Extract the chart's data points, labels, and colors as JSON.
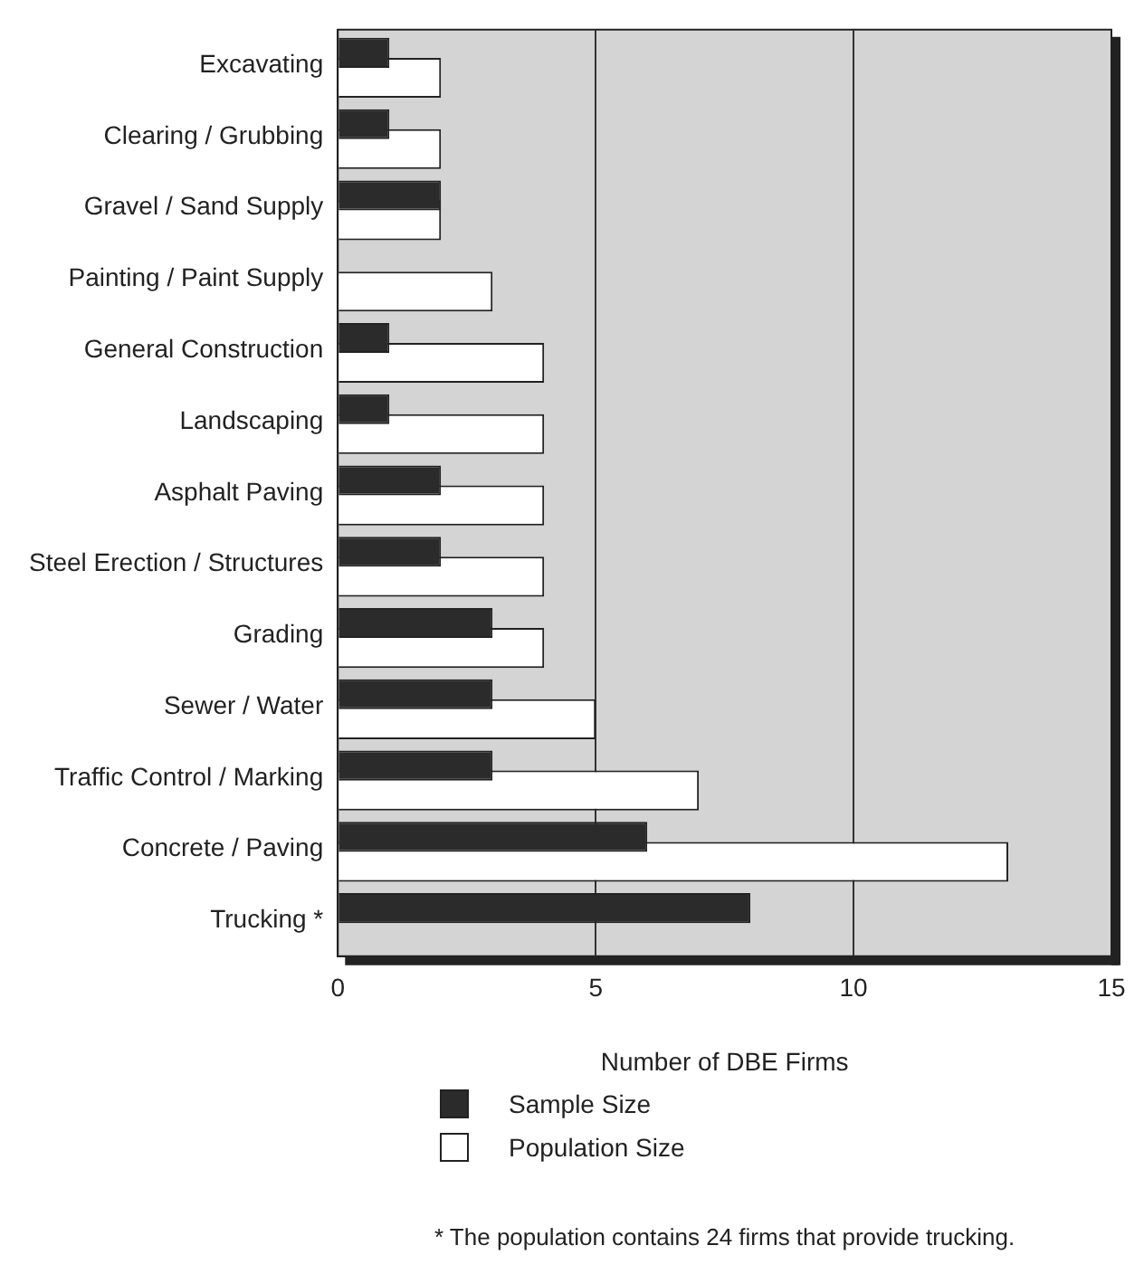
{
  "chart_data": {
    "type": "bar",
    "orientation": "horizontal",
    "xlabel": "Number of DBE Firms",
    "categories": [
      "Excavating",
      "Clearing / Grubbing",
      "Gravel / Sand Supply",
      "Painting / Paint Supply",
      "General Construction",
      "Landscaping",
      "Asphalt Paving",
      "Steel Erection / Structures",
      "Grading",
      "Sewer / Water",
      "Traffic Control / Marking",
      "Concrete / Paving",
      "Trucking *"
    ],
    "series": [
      {
        "name": "Sample Size",
        "color": "#2b2b2b",
        "values": [
          1,
          1,
          2,
          0,
          1,
          1,
          2,
          2,
          3,
          3,
          3,
          6,
          8
        ]
      },
      {
        "name": "Population Size",
        "color": "#ffffff",
        "values": [
          2,
          2,
          2,
          3,
          4,
          4,
          4,
          4,
          4,
          5,
          7,
          13,
          null
        ]
      }
    ],
    "xlim": [
      0,
      15
    ],
    "xticks": [
      0,
      5,
      10,
      15
    ],
    "grid": "x",
    "legend": "bottom left",
    "annotations": [
      "* The population contains 24 firms that provide trucking."
    ]
  }
}
